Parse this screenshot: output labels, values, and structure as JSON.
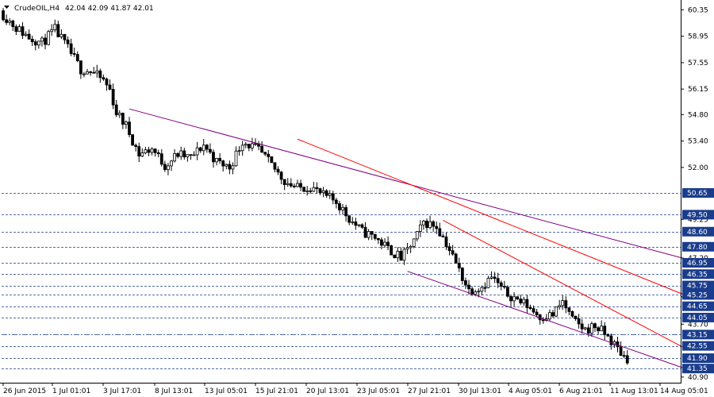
{
  "chart_data": {
    "type": "candlestick",
    "symbol": "CrudeOIL,H4",
    "ohlc_header": "42.04 42.09 41.87 42.01",
    "ylim": [
      40.6,
      60.7
    ],
    "y_ticks": [
      "60.35",
      "58.95",
      "57.55",
      "56.15",
      "54.80",
      "53.40",
      "52.00",
      "49.25",
      "47.20",
      "45.15",
      "43.70",
      "40.90"
    ],
    "x_labels": [
      "26 Jun 2015",
      "1 Jul 01:01",
      "3 Jul 17:01",
      "8 Jul 13:01",
      "13 Jul 05:01",
      "15 Jul 21:01",
      "20 Jul 13:01",
      "23 Jul 05:01",
      "27 Jul 21:01",
      "30 Jul 13:01",
      "4 Aug 05:01",
      "6 Aug 21:01",
      "11 Aug 13:01",
      "14 Aug 05:01"
    ],
    "price_levels": [
      "50.65",
      "49.50",
      "48.60",
      "47.80",
      "46.95",
      "46.35",
      "45.75",
      "45.25",
      "44.65",
      "44.05",
      "43.15",
      "42.55",
      "41.90",
      "41.35"
    ],
    "close_path": [
      [
        0,
        60.1
      ],
      [
        4,
        59.4
      ],
      [
        8,
        58.9
      ],
      [
        12,
        58.6
      ],
      [
        16,
        59.3
      ],
      [
        20,
        58.3
      ],
      [
        24,
        57.2
      ],
      [
        27,
        57.1
      ],
      [
        31,
        56.6
      ],
      [
        33,
        56.1
      ],
      [
        35,
        54.9
      ],
      [
        38,
        54.2
      ],
      [
        42,
        52.7
      ],
      [
        46,
        53.0
      ],
      [
        50,
        52.1
      ],
      [
        54,
        52.7
      ],
      [
        58,
        52.5
      ],
      [
        62,
        53.2
      ],
      [
        66,
        52.3
      ],
      [
        70,
        52.0
      ],
      [
        74,
        53.4
      ],
      [
        79,
        52.9
      ],
      [
        83,
        52.1
      ],
      [
        87,
        51.3
      ],
      [
        91,
        50.9
      ],
      [
        95,
        51.0
      ],
      [
        99,
        50.5
      ],
      [
        103,
        50.2
      ],
      [
        107,
        49.3
      ],
      [
        111,
        48.6
      ],
      [
        115,
        48.3
      ],
      [
        119,
        47.7
      ],
      [
        123,
        47.2
      ],
      [
        125,
        47.6
      ],
      [
        128,
        48.4
      ],
      [
        130,
        49.1
      ],
      [
        134,
        48.9
      ],
      [
        137,
        48.0
      ],
      [
        140,
        46.9
      ],
      [
        144,
        45.5
      ],
      [
        148,
        45.7
      ],
      [
        151,
        46.2
      ],
      [
        155,
        45.4
      ],
      [
        158,
        45.1
      ],
      [
        162,
        44.7
      ],
      [
        166,
        44.1
      ],
      [
        170,
        44.2
      ],
      [
        173,
        44.9
      ],
      [
        176,
        43.9
      ],
      [
        180,
        43.4
      ],
      [
        183,
        43.6
      ],
      [
        186,
        43.2
      ],
      [
        189,
        42.6
      ],
      [
        192,
        42.0
      ],
      [
        193,
        41.9
      ]
    ],
    "trendlines": [
      {
        "color": "#800080",
        "from": [
          39,
          55.1
        ],
        "to": [
          210,
          47.2
        ]
      },
      {
        "color": "#ff0000",
        "from": [
          91,
          53.5
        ],
        "to": [
          210,
          45.3
        ]
      },
      {
        "color": "#ff0000",
        "from": [
          136,
          49.2
        ],
        "to": [
          210,
          42.5
        ]
      },
      {
        "color": "#800080",
        "from": [
          125,
          46.5
        ],
        "to": [
          210,
          41.4
        ]
      }
    ],
    "n_bars": 210,
    "grid": false,
    "colors": {
      "background": "#ffffff",
      "candle": "#000000",
      "level_line": "#1a3c8c",
      "badge": "#1a3c8c",
      "purple_line": "#800080",
      "red_line": "#ff0000"
    }
  }
}
